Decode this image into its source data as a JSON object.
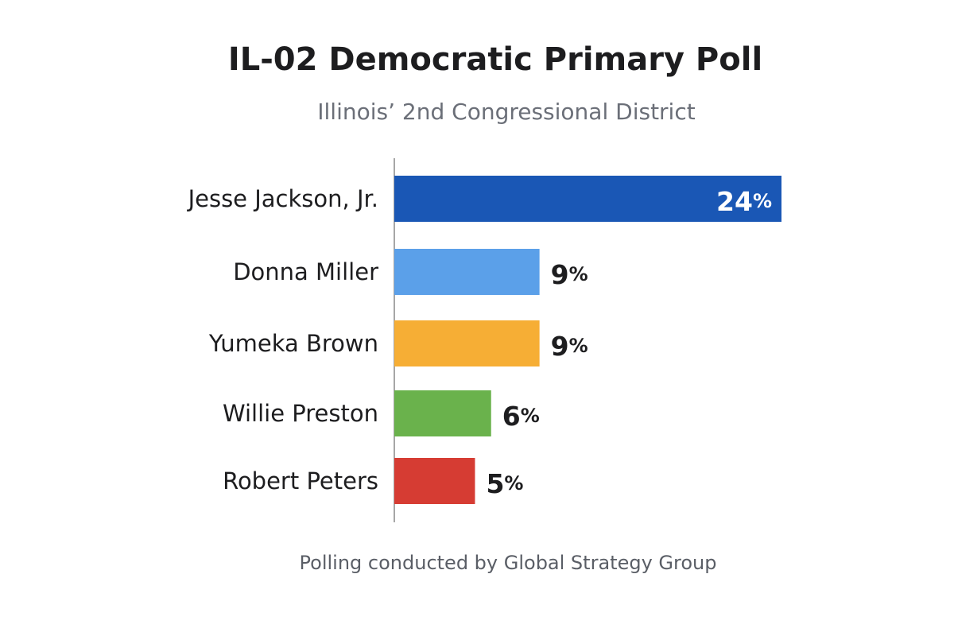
{
  "chart_data": {
    "type": "bar",
    "orientation": "horizontal",
    "title": "IL-02 Democratic Primary Poll",
    "subtitle": "Illinois’ 2nd Congressional District",
    "categories": [
      "Jesse Jackson, Jr.",
      "Donna Miller",
      "Yumeka Brown",
      "Willie Preston",
      "Robert Peters"
    ],
    "values": [
      24,
      9,
      9,
      6,
      5
    ],
    "value_suffix": "%",
    "colors": [
      "#1a57b5",
      "#5ba0e9",
      "#f6ae35",
      "#6ab24c",
      "#d63c33"
    ],
    "label_colors": [
      "#ffffff",
      "#1d1d1f",
      "#1d1d1f",
      "#1d1d1f",
      "#1d1d1f"
    ],
    "xlim": [
      0,
      24
    ],
    "grid": false,
    "legend": false
  },
  "source_note": "Polling conducted by Global Strategy Group"
}
